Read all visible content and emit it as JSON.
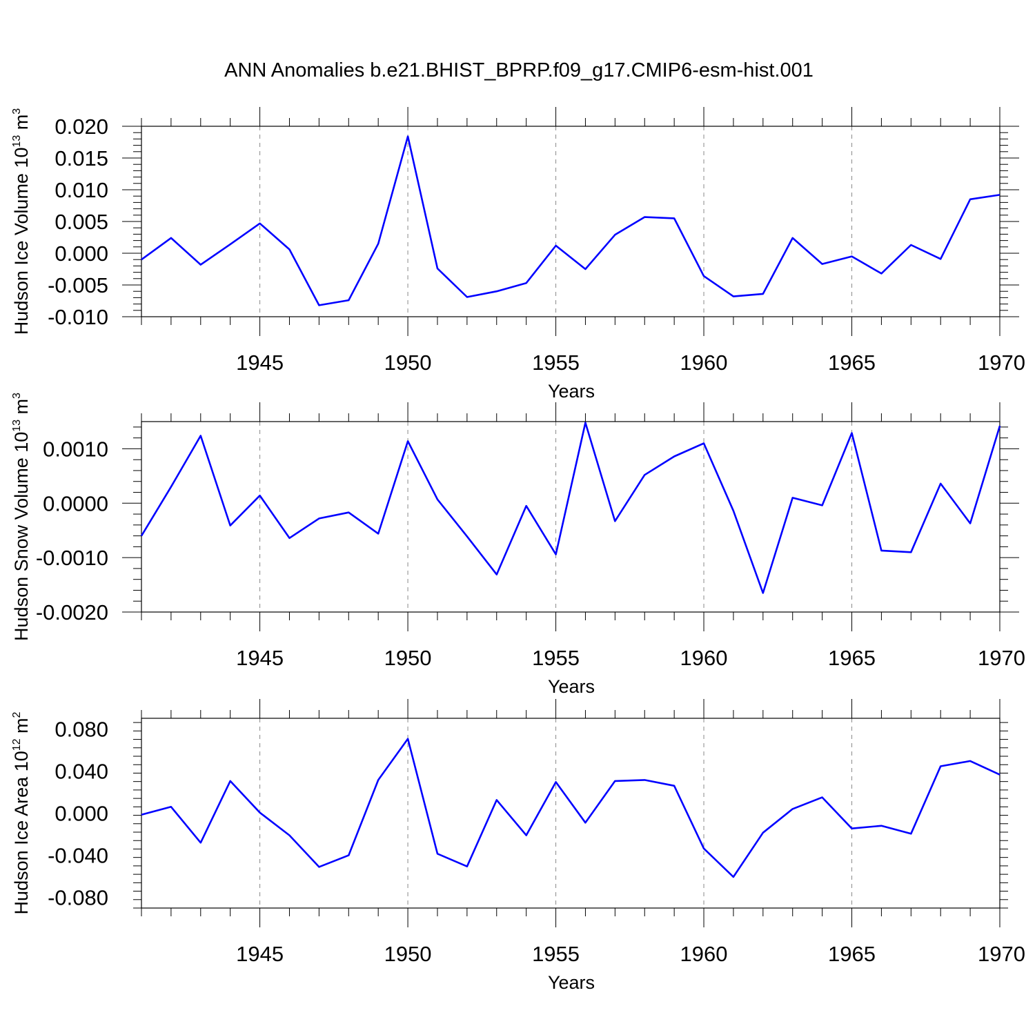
{
  "title": "ANN Anomalies b.e21.BHIST_BPRP.f09_g17.CMIP6-esm-hist.001",
  "line_color": "#0000ff",
  "chart_data": [
    {
      "type": "line",
      "ylabel": "Hudson Ice Volume 10",
      "ylabel_exp": "13",
      "ylabel_unit": " m",
      "ylabel_unit_exp": "3",
      "xlabel": "Years",
      "xlim": [
        1941,
        1970
      ],
      "ylim": [
        -0.01,
        0.02
      ],
      "yticks": [
        -0.01,
        -0.005,
        0.0,
        0.005,
        0.01,
        0.015,
        0.02
      ],
      "ytick_labels": [
        "-0.010",
        "-0.005",
        "0.000",
        "0.005",
        "0.010",
        "0.015",
        "0.020"
      ],
      "xticks": [
        1945,
        1950,
        1955,
        1960,
        1965,
        1970
      ],
      "xtick_labels": [
        "1945",
        "1950",
        "1955",
        "1960",
        "1965",
        "1970"
      ],
      "grid": "vertical dashed at major x ticks",
      "x": [
        1941,
        1942,
        1943,
        1944,
        1945,
        1946,
        1947,
        1948,
        1949,
        1950,
        1951,
        1952,
        1953,
        1954,
        1955,
        1956,
        1957,
        1958,
        1959,
        1960,
        1961,
        1962,
        1963,
        1964,
        1965,
        1966,
        1967,
        1968,
        1969,
        1970
      ],
      "series": [
        {
          "values": [
            -0.001,
            0.0024,
            -0.0018,
            0.0014,
            0.0047,
            0.0006,
            -0.0082,
            -0.0074,
            0.0015,
            0.0184,
            -0.0024,
            -0.0069,
            -0.006,
            -0.0047,
            0.0012,
            -0.0025,
            0.0029,
            0.0057,
            0.0055,
            -0.0036,
            -0.0068,
            -0.0064,
            0.0024,
            -0.0017,
            -0.0005,
            -0.0032,
            0.0013,
            -0.0009,
            0.0085,
            0.0092
          ]
        }
      ]
    },
    {
      "type": "line",
      "ylabel": "Hudson Snow Volume 10",
      "ylabel_exp": "13",
      "ylabel_unit": " m",
      "ylabel_unit_exp": "3",
      "xlabel": "Years",
      "xlim": [
        1941,
        1970
      ],
      "ylim": [
        -0.002,
        0.0015
      ],
      "yticks": [
        -0.002,
        -0.001,
        0.0,
        0.001
      ],
      "ytick_labels": [
        "-0.0020",
        "-0.0010",
        "0.0000",
        "0.0010"
      ],
      "xticks": [
        1945,
        1950,
        1955,
        1960,
        1965,
        1970
      ],
      "xtick_labels": [
        "1945",
        "1950",
        "1955",
        "1960",
        "1965",
        "1970"
      ],
      "grid": "vertical dashed at major x ticks",
      "x": [
        1941,
        1942,
        1943,
        1944,
        1945,
        1946,
        1947,
        1948,
        1949,
        1950,
        1951,
        1952,
        1953,
        1954,
        1955,
        1956,
        1957,
        1958,
        1959,
        1960,
        1961,
        1962,
        1963,
        1964,
        1965,
        1966,
        1967,
        1968,
        1969,
        1970
      ],
      "series": [
        {
          "values": [
            -0.0006,
            0.0003,
            0.00124,
            -0.00041,
            0.00014,
            -0.00064,
            -0.00028,
            -0.00017,
            -0.00056,
            0.00114,
            7e-05,
            -0.00061,
            -0.00131,
            -5e-05,
            -0.00094,
            0.00148,
            -0.00033,
            0.00052,
            0.00086,
            0.0011,
            -0.00014,
            -0.00165,
            0.0001,
            -4e-05,
            0.00129,
            -0.00087,
            -0.0009,
            0.00036,
            -0.00037,
            0.00142
          ]
        }
      ]
    },
    {
      "type": "line",
      "ylabel": "Hudson Ice Area 10",
      "ylabel_exp": "12",
      "ylabel_unit": " m",
      "ylabel_unit_exp": "2",
      "xlabel": "Years",
      "xlim": [
        1941,
        1970
      ],
      "ylim": [
        -0.09,
        0.09
      ],
      "yticks": [
        -0.08,
        -0.04,
        0.0,
        0.04,
        0.08
      ],
      "ytick_labels": [
        "-0.080",
        "-0.040",
        "0.000",
        "0.040",
        "0.080"
      ],
      "xticks": [
        1945,
        1950,
        1955,
        1960,
        1965,
        1970
      ],
      "xtick_labels": [
        "1945",
        "1950",
        "1955",
        "1960",
        "1965",
        "1970"
      ],
      "grid": "vertical dashed at major x ticks",
      "x": [
        1941,
        1942,
        1943,
        1944,
        1945,
        1946,
        1947,
        1948,
        1949,
        1950,
        1951,
        1952,
        1953,
        1954,
        1955,
        1956,
        1957,
        1958,
        1959,
        1960,
        1961,
        1962,
        1963,
        1964,
        1965,
        1966,
        1967,
        1968,
        1969,
        1970
      ],
      "series": [
        {
          "values": [
            -0.0015,
            0.006,
            -0.028,
            0.0305,
            0.0005,
            -0.021,
            -0.051,
            -0.04,
            0.0315,
            0.0705,
            -0.0385,
            -0.0505,
            0.0125,
            -0.021,
            0.0295,
            -0.009,
            0.0305,
            0.0315,
            0.026,
            -0.0335,
            -0.0605,
            -0.0185,
            0.004,
            0.015,
            -0.0145,
            -0.012,
            -0.0195,
            0.0445,
            0.0495,
            0.0365
          ]
        }
      ]
    }
  ]
}
